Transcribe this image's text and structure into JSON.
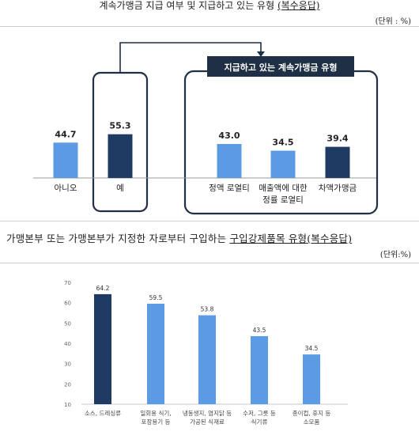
{
  "top": {
    "title_part1": "계속가맹금 지급 여부 및 지급하고 있는 유형 ",
    "title_part2": "(복수응답)",
    "unit": "(단위 : %)",
    "callout_label": "지급하고 있는 계속가맹금 유형",
    "colors": {
      "light": "#5b9be3",
      "dark": "#1f3b63",
      "frame": "#1f2f45"
    }
  },
  "bottom": {
    "title_part1": "가맹본부 또는 가맹본부가 지정한 자로부터 구입하는 ",
    "title_part2": "구입강제품목 유형",
    "title_part3": "(복수응답)",
    "unit": "(단위:%)",
    "colors": {
      "light": "#5b9be3",
      "dark": "#1f3b63",
      "axis_text": "#666666",
      "grid": "#e6e6e6"
    }
  },
  "chart_data": [
    {
      "type": "bar",
      "title": "계속가맹금 지급 여부 및 지급하고 있는 유형 (복수응답)",
      "unit": "%",
      "categories": [
        [
          "아니오"
        ],
        [
          "예"
        ],
        [
          "정액 로열티"
        ],
        [
          "매출액에 대한",
          "정률 로열티"
        ],
        [
          "차액가맹금"
        ]
      ],
      "values": [
        44.7,
        55.3,
        43.0,
        34.5,
        39.4
      ],
      "value_labels": [
        "44.7",
        "55.3",
        "43.0",
        "34.5",
        "39.4"
      ],
      "highlight": [
        false,
        true,
        false,
        false,
        true
      ],
      "group_label": "지급하고 있는 계속가맹금 유형",
      "grid": false
    },
    {
      "type": "bar",
      "title": "가맹본부 또는 가맹본부가 지정한 자로부터 구입하는 구입강제품목 유형(복수응답)",
      "unit": "%",
      "categories": [
        [
          "소스, 드레싱류"
        ],
        [
          "일회용 식기,",
          "포장용기 등"
        ],
        [
          "냉동생지, 염지닭 등",
          "가공된 식재료"
        ],
        [
          "수저, 그릇 등",
          "식기류"
        ],
        [
          "종이컵, 휴지 등",
          "소모품"
        ]
      ],
      "values": [
        64.2,
        59.5,
        53.8,
        43.5,
        34.5
      ],
      "value_labels": [
        "64.2",
        "59.5",
        "53.8",
        "43.5",
        "34.5"
      ],
      "highlight": [
        true,
        false,
        false,
        false,
        false
      ],
      "yticks": [
        "10",
        "20",
        "30",
        "40",
        "50",
        "60",
        "70"
      ],
      "ylim": [
        10,
        70
      ],
      "grid": false
    }
  ]
}
